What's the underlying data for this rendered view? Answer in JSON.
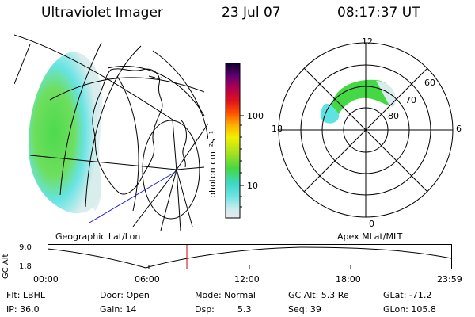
{
  "header": {
    "instrument": "Ultraviolet Imager",
    "date": "23 Jul 07",
    "time": "08:17:37 UT"
  },
  "geo_map": {
    "label": "Geographic Lat/Lon"
  },
  "colorbar": {
    "unit_label": "photon cm⁻²s⁻¹",
    "scale": "log",
    "ticks": [
      "100",
      "10"
    ]
  },
  "polar_plot": {
    "label": "Apex MLat/MLT",
    "mlt_labels": {
      "top": "12",
      "left": "18",
      "right": "6",
      "bottom": "0"
    },
    "lat_labels": [
      "60",
      "70",
      "80"
    ]
  },
  "orbit_plot": {
    "ylabel": "GC Alt",
    "yticks": [
      "9.0",
      "1.8"
    ],
    "xticks": [
      "00:00",
      "06:00",
      "12:00",
      "18:00",
      "23:59"
    ],
    "current_time_marker": "08:17:37"
  },
  "status": {
    "filter": "Flt: LBHL",
    "ip": "IP: 36.0",
    "door": "Door: Open",
    "gain": "Gain: 14",
    "mode": "Mode: Normal",
    "dsp": "Dsp:",
    "dsp_value": "5.3",
    "gc_alt": "GC Alt: 5.3 Re",
    "seq": "Seq: 39",
    "glat": "GLat: -71.2",
    "glon": "GLon: 105.8"
  },
  "colors": {
    "aurora_green": "#44d844",
    "aurora_cyan": "#5fe2e2",
    "aurora_faint": "#d8ecec",
    "marker_red": "#cc0000",
    "orbit_blue": "#2222cc"
  }
}
